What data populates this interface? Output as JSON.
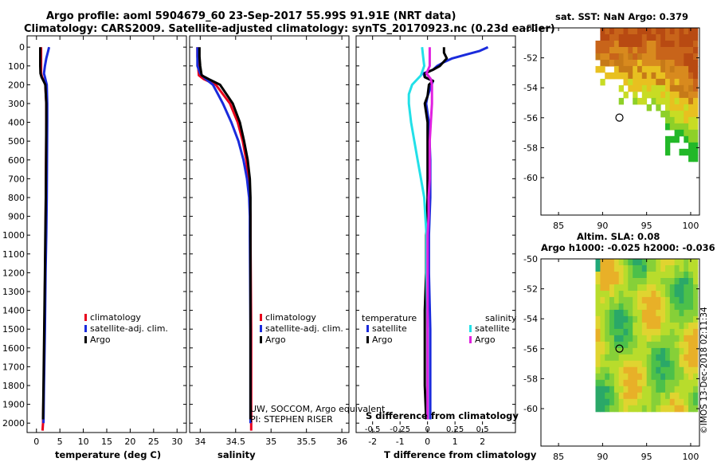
{
  "header": {
    "title_line1": "Argo profile: aoml 5904679_60 23-Sep-2017 55.99S 91.91E (NRT data)",
    "title_line2": "Climatology: CARS2009. Satellite-adjusted climatology: synTS_20170923.nc (0.23d earlier)"
  },
  "colors": {
    "climatology": "#e8001c",
    "satellite": "#1a2bdc",
    "argo": "#000000",
    "satellite_s": "#22e0e8",
    "argo_s": "#e020e0"
  },
  "depth_axis": {
    "ticks": [
      0,
      100,
      200,
      300,
      400,
      500,
      600,
      700,
      800,
      900,
      1000,
      1100,
      1200,
      1300,
      1400,
      1500,
      1600,
      1700,
      1800,
      1900,
      2000
    ],
    "range": [
      -60,
      2050
    ]
  },
  "chart_data": [
    {
      "type": "line",
      "name": "temperature-profile",
      "xlabel": "temperature (deg C)",
      "xlim": [
        -2,
        32
      ],
      "xticks": [
        0,
        5,
        10,
        15,
        20,
        25,
        30
      ],
      "ylim": [
        -60,
        2050
      ],
      "legend": [
        "climatology",
        "satellite-adj. clim.",
        "Argo"
      ],
      "series": [
        {
          "name": "climatology",
          "color": "#e8001c",
          "depth": [
            0,
            50,
            100,
            140,
            160,
            180,
            200,
            300,
            400,
            600,
            800,
            1000,
            1200,
            1500,
            1800,
            2000,
            2040
          ],
          "values": [
            1.0,
            1.0,
            1.0,
            1.0,
            1.2,
            1.6,
            1.9,
            2.1,
            2.1,
            2.05,
            2.0,
            1.95,
            1.85,
            1.7,
            1.55,
            1.4,
            1.3
          ]
        },
        {
          "name": "satellite-adj. clim.",
          "color": "#1a2bdc",
          "depth": [
            0,
            20,
            60,
            100,
            140,
            160,
            180,
            200,
            300,
            400,
            600,
            800,
            1000,
            1200,
            1500,
            1800,
            2000
          ],
          "values": [
            2.7,
            2.5,
            2.1,
            1.8,
            1.6,
            1.8,
            2.0,
            2.2,
            2.3,
            2.3,
            2.25,
            2.2,
            2.1,
            1.95,
            1.8,
            1.6,
            1.5
          ]
        },
        {
          "name": "Argo",
          "color": "#000000",
          "depth": [
            0,
            50,
            100,
            140,
            160,
            180,
            200,
            300,
            400,
            600,
            800,
            1000,
            1200,
            1500,
            1800,
            1980
          ],
          "values": [
            0.8,
            0.8,
            0.8,
            0.85,
            1.1,
            1.5,
            1.9,
            2.1,
            2.1,
            2.05,
            2.0,
            1.9,
            1.8,
            1.65,
            1.5,
            1.4
          ]
        }
      ]
    },
    {
      "type": "line",
      "name": "salinity-profile",
      "xlabel": "salinity",
      "xlim": [
        33.85,
        36.1
      ],
      "xticks": [
        34,
        34.5,
        35,
        35.5,
        36
      ],
      "xticklabels": [
        "34",
        "34.5",
        "35",
        "35.5",
        "36"
      ],
      "ylim": [
        -60,
        2050
      ],
      "legend": [
        "climatology",
        "satellite-adj. clim.",
        "Argo"
      ],
      "series": [
        {
          "name": "climatology",
          "color": "#e8001c",
          "depth": [
            0,
            50,
            100,
            150,
            170,
            200,
            300,
            400,
            500,
            600,
            700,
            800,
            900,
            1000,
            1500,
            2000,
            2040
          ],
          "values": [
            33.96,
            33.96,
            33.97,
            33.98,
            34.05,
            34.22,
            34.42,
            34.53,
            34.6,
            34.65,
            34.68,
            34.7,
            34.71,
            34.71,
            34.72,
            34.72,
            34.72
          ]
        },
        {
          "name": "satellite-adj. clim.",
          "color": "#1a2bdc",
          "depth": [
            0,
            50,
            100,
            140,
            170,
            200,
            300,
            400,
            500,
            600,
            700,
            800,
            900,
            1000,
            1500,
            2000
          ],
          "values": [
            33.96,
            33.96,
            33.96,
            34.0,
            34.08,
            34.18,
            34.32,
            34.44,
            34.54,
            34.61,
            34.66,
            34.69,
            34.7,
            34.7,
            34.71,
            34.71
          ]
        },
        {
          "name": "Argo",
          "color": "#000000",
          "depth": [
            0,
            50,
            100,
            150,
            170,
            200,
            300,
            400,
            500,
            600,
            700,
            800,
            900,
            1000,
            1500,
            1980
          ],
          "values": [
            33.99,
            33.99,
            34.0,
            34.02,
            34.12,
            34.28,
            34.46,
            34.56,
            34.62,
            34.67,
            34.7,
            34.71,
            34.71,
            34.71,
            34.71,
            34.71
          ]
        }
      ]
    },
    {
      "type": "line",
      "name": "difference-profile",
      "xlabel": "T difference from climatology",
      "xlabel_top": "S difference from climatology",
      "xlim": [
        -2.6,
        3.2
      ],
      "xticks": [
        -2,
        -1,
        0,
        1,
        2
      ],
      "xticks_s": [
        -0.5,
        -0.25,
        0,
        0.25,
        0.5
      ],
      "xticklabels_s": [
        "-0.5",
        "-0.25",
        "0",
        "0.25",
        "0.5"
      ],
      "ylim": [
        -60,
        2050
      ],
      "legend_t_title": "temperature",
      "legend_s_title": "salinity",
      "legend_t": [
        "satellite",
        "Argo"
      ],
      "legend_s": [
        "satellite",
        "Argo"
      ],
      "series": [
        {
          "name": "T satellite",
          "color": "#1a2bdc",
          "depth": [
            0,
            20,
            40,
            60,
            80,
            100,
            120,
            140,
            160,
            180,
            200,
            260,
            300,
            400,
            600,
            800,
            1000,
            1200,
            1500,
            1800,
            1980
          ],
          "values": [
            2.2,
            1.9,
            1.4,
            0.9,
            0.6,
            0.35,
            0.2,
            -0.15,
            -0.1,
            0.2,
            0.15,
            0.0,
            -0.05,
            0.05,
            0.1,
            0.1,
            0.05,
            0.05,
            0.1,
            0.1,
            0.1
          ]
        },
        {
          "name": "T Argo",
          "color": "#000000",
          "depth": [
            0,
            30,
            60,
            100,
            120,
            140,
            160,
            180,
            200,
            260,
            300,
            400,
            600,
            800,
            1000,
            1200,
            1400,
            1600,
            1800,
            1980
          ],
          "values": [
            0.6,
            0.6,
            0.7,
            0.45,
            0.2,
            -0.1,
            -0.1,
            0.2,
            0.05,
            0.0,
            -0.1,
            0.0,
            0.0,
            0.0,
            -0.05,
            -0.05,
            -0.1,
            -0.1,
            -0.1,
            -0.05
          ]
        },
        {
          "name": "S satellite",
          "color": "#22e0e8",
          "depth": [
            0,
            50,
            100,
            150,
            200,
            250,
            300,
            400,
            500,
            600,
            700,
            800,
            900,
            1000,
            1200,
            1500,
            1800,
            1980
          ],
          "values": [
            -0.05,
            -0.04,
            -0.03,
            -0.06,
            -0.14,
            -0.17,
            -0.17,
            -0.15,
            -0.12,
            -0.09,
            -0.06,
            -0.03,
            -0.02,
            -0.01,
            -0.01,
            0.0,
            0.0,
            0.0
          ]
        },
        {
          "name": "S Argo",
          "color": "#e020e0",
          "depth": [
            0,
            50,
            100,
            140,
            170,
            200,
            300,
            400,
            500,
            600,
            700,
            800,
            900,
            1000,
            1200,
            1500,
            1800,
            1980
          ],
          "values": [
            0.02,
            0.02,
            0.02,
            -0.01,
            0.03,
            0.04,
            0.04,
            0.03,
            0.02,
            0.02,
            0.02,
            0.01,
            0.01,
            0.0,
            0.0,
            0.0,
            0.0,
            0.0
          ]
        }
      ]
    },
    {
      "type": "heatmap",
      "name": "sst-map",
      "title": "sat. SST: NaN Argo: 0.379",
      "xlim": [
        83,
        101
      ],
      "ylim": [
        -62.5,
        -50
      ],
      "xticks": [
        85,
        90,
        95,
        100
      ],
      "yticks": [
        -50,
        -52,
        -54,
        -56,
        -58,
        -60
      ],
      "argo_position": [
        91.91,
        -55.99
      ]
    },
    {
      "type": "heatmap",
      "name": "sla-map",
      "title": "Altim. SLA: 0.08",
      "subtitle": "Argo h1000: -0.025 h2000: -0.036",
      "xlim": [
        83,
        101
      ],
      "ylim": [
        -62.5,
        -50
      ],
      "xticks": [
        85,
        90,
        95,
        100
      ],
      "yticks": [
        -50,
        -52,
        -54,
        -56,
        -58,
        -60
      ],
      "argo_position": [
        91.91,
        -55.99
      ]
    }
  ],
  "credits": {
    "line1": "UW, SOCCOM, Argo equivalent",
    "line2": "PI: STEPHEN RISER",
    "stamp": "©IMOS 13-Dec-2018 02:11:34"
  }
}
